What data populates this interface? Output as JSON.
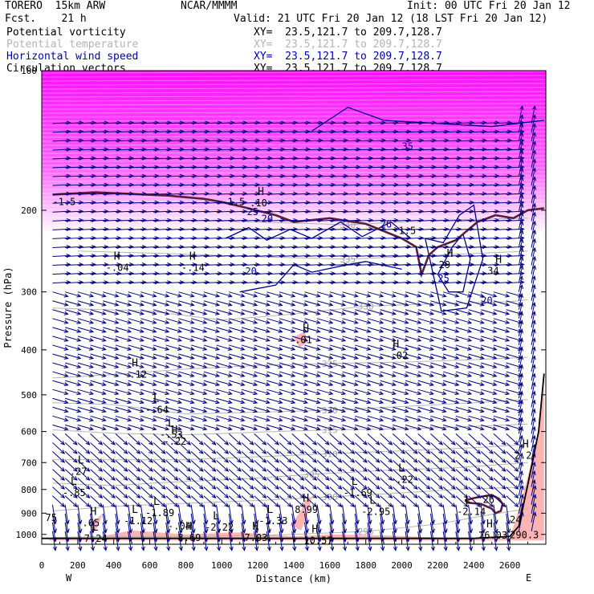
{
  "header": {
    "model": "TORERO  15km ARW",
    "org": "NCAR/MMMM",
    "init": "Init: 00 UTC Fri 20 Jan 12",
    "fcst": "Fcst.    21 h",
    "valid": "Valid: 21 UTC Fri 20 Jan 12 (18 LST Fri 20 Jan 12)"
  },
  "legend": [
    {
      "label": "Potential vorticity",
      "xy": "XY=  23.5,121.7 to 209.7,128.7",
      "color": "#000000"
    },
    {
      "label": "Potential temperature",
      "xy": "XY=  23.5,121.7 to 209.7,128.7",
      "color": "#b4b4b4"
    },
    {
      "label": "Horizontal wind speed",
      "xy": "XY=  23.5,121.7 to 209.7,128.7",
      "color": "#0000aa"
    },
    {
      "label": "Circulation vectors",
      "xy": "XY=  23.5,121.7 to 209.7,128.7",
      "color": "#000000"
    }
  ],
  "chart_data": {
    "type": "cross-section",
    "xlabel": "Distance (km)",
    "ylabel": "Pressure (hPa)",
    "xlim": [
      0,
      2800
    ],
    "ylim": [
      1050,
      100
    ],
    "y_log_scale": true,
    "x_ticks": [
      0,
      200,
      400,
      600,
      800,
      1000,
      1200,
      1400,
      1600,
      1800,
      2000,
      2200,
      2400,
      2600
    ],
    "y_ticks": [
      100,
      200,
      300,
      400,
      500,
      600,
      700,
      800,
      900,
      1000
    ],
    "x_end_labels": {
      "left": "W",
      "right": "E"
    },
    "colors": {
      "theta": "#b4b4b4",
      "wind": "#00008b",
      "pv": "#5a1e3c",
      "pv_fill": "#ff00ff",
      "shade": "#ffb4b4",
      "vector": "#000080"
    },
    "theta_contours": [
      {
        "value": 295,
        "points": [
          [
            60,
            1015
          ],
          [
            400,
            1010
          ],
          [
            800,
            1012
          ],
          [
            1400,
            1000
          ],
          [
            1800,
            985
          ],
          [
            2200,
            950
          ],
          [
            2500,
            905
          ],
          [
            2700,
            880
          ]
        ]
      },
      {
        "value": 300,
        "points": [
          [
            60,
            890
          ],
          [
            400,
            870
          ],
          [
            700,
            860
          ],
          [
            1200,
            845
          ],
          [
            1600,
            830
          ],
          [
            1900,
            818
          ],
          [
            2300,
            800
          ],
          [
            2700,
            790
          ]
        ]
      },
      {
        "value": 305,
        "points": [
          [
            60,
            775
          ],
          [
            400,
            785
          ],
          [
            700,
            772
          ],
          [
            1100,
            760
          ],
          [
            1500,
            742
          ],
          [
            1900,
            728
          ],
          [
            2300,
            718
          ],
          [
            2700,
            700
          ]
        ]
      },
      {
        "value": 310,
        "points": [
          [
            60,
            690
          ],
          [
            400,
            690
          ],
          [
            800,
            690
          ],
          [
            1200,
            680
          ],
          [
            1600,
            670
          ],
          [
            2000,
            660
          ],
          [
            2400,
            650
          ],
          [
            2700,
            640
          ]
        ]
      },
      {
        "value": 315,
        "points": [
          [
            60,
            595
          ],
          [
            400,
            605
          ],
          [
            800,
            610
          ],
          [
            1200,
            602
          ],
          [
            1600,
            595
          ],
          [
            2000,
            592
          ],
          [
            2400,
            585
          ],
          [
            2700,
            578
          ]
        ]
      },
      {
        "value": 320,
        "points": [
          [
            60,
            520
          ],
          [
            400,
            525
          ],
          [
            800,
            550
          ],
          [
            1200,
            545
          ],
          [
            1600,
            540
          ],
          [
            2000,
            530
          ],
          [
            2400,
            520
          ],
          [
            2700,
            512
          ]
        ]
      },
      {
        "value": 325,
        "points": [
          [
            60,
            460
          ],
          [
            400,
            452
          ],
          [
            800,
            440
          ],
          [
            1200,
            432
          ],
          [
            1600,
            428
          ],
          [
            2000,
            425
          ],
          [
            2400,
            420
          ],
          [
            2700,
            415
          ]
        ]
      },
      {
        "value": 330,
        "points": [
          [
            60,
            325
          ],
          [
            600,
            330
          ],
          [
            1000,
            345
          ],
          [
            1400,
            335
          ],
          [
            1800,
            322
          ],
          [
            2200,
            318
          ],
          [
            2600,
            315
          ],
          [
            2700,
            312
          ]
        ]
      },
      {
        "value": 335,
        "points": [
          [
            200,
            245
          ],
          [
            700,
            248
          ],
          [
            1200,
            252
          ],
          [
            1700,
            255
          ],
          [
            2200,
            250
          ],
          [
            2700,
            245
          ]
        ]
      },
      {
        "value": 340,
        "points": [
          [
            200,
            210
          ],
          [
            700,
            210
          ],
          [
            1200,
            212
          ],
          [
            1700,
            215
          ],
          [
            2200,
            210
          ],
          [
            2700,
            208
          ]
        ]
      }
    ],
    "wind_contours": [
      {
        "value": 25,
        "points": [
          [
            1020,
            230
          ],
          [
            1150,
            218
          ],
          [
            1250,
            232
          ],
          [
            1380,
            220
          ],
          [
            1500,
            230
          ],
          [
            1660,
            212
          ],
          [
            1780,
            228
          ],
          [
            1940,
            212
          ],
          [
            2050,
            230
          ]
        ]
      },
      {
        "value": 20,
        "points": [
          [
            1100,
            300
          ],
          [
            1300,
            290
          ],
          [
            1400,
            262
          ],
          [
            1500,
            272
          ],
          [
            1700,
            262
          ],
          [
            1800,
            258
          ],
          [
            2000,
            268
          ]
        ]
      },
      {
        "value": 25,
        "points": [
          [
            2200,
            275
          ],
          [
            2280,
            240
          ],
          [
            2340,
            225
          ],
          [
            2380,
            255
          ],
          [
            2340,
            300
          ],
          [
            2260,
            300
          ],
          [
            2200,
            275
          ]
        ]
      },
      {
        "value": 20,
        "points": [
          [
            2130,
            230
          ],
          [
            2230,
            235
          ],
          [
            2320,
            205
          ],
          [
            2400,
            195
          ],
          [
            2450,
            255
          ],
          [
            2360,
            325
          ],
          [
            2220,
            330
          ],
          [
            2130,
            230
          ]
        ]
      },
      {
        "value": 35,
        "points": [
          [
            1500,
            135
          ],
          [
            1700,
            120
          ],
          [
            1900,
            128
          ],
          [
            2200,
            130
          ],
          [
            2500,
            132
          ],
          [
            2790,
            128
          ]
        ]
      }
    ],
    "pv_contours": [
      {
        "value": 1.5,
        "points": [
          [
            60,
            185
          ],
          [
            300,
            183
          ],
          [
            700,
            186
          ],
          [
            900,
            189
          ],
          [
            1000,
            192
          ],
          [
            1100,
            196
          ],
          [
            1300,
            205
          ],
          [
            1400,
            212
          ],
          [
            1600,
            208
          ],
          [
            1800,
            214
          ],
          [
            2000,
            230
          ],
          [
            2080,
            240
          ],
          [
            2110,
            275
          ],
          [
            2150,
            250
          ],
          [
            2200,
            240
          ],
          [
            2300,
            232
          ],
          [
            2420,
            212
          ],
          [
            2520,
            205
          ],
          [
            2620,
            208
          ],
          [
            2700,
            200
          ],
          [
            2790,
            198
          ]
        ]
      },
      {
        "value": 1.5,
        "points": [
          [
            2350,
            845
          ],
          [
            2400,
            835
          ],
          [
            2450,
            828
          ],
          [
            2500,
            822
          ],
          [
            2540,
            838
          ],
          [
            2560,
            860
          ],
          [
            2550,
            890
          ],
          [
            2520,
            900
          ],
          [
            2500,
            880
          ],
          [
            2440,
            860
          ],
          [
            2380,
            855
          ],
          [
            2350,
            845
          ]
        ]
      }
    ],
    "wind_vectors": [
      {
        "layer": "upper",
        "p_range": [
          130,
          300
        ],
        "u": 1.0,
        "v": -0.05
      },
      {
        "layer": "mid",
        "p_range": [
          300,
          600
        ],
        "u": 0.85,
        "v": 0.25
      },
      {
        "layer": "lower",
        "p_range": [
          600,
          850
        ],
        "u": 0.6,
        "v": 0.55
      },
      {
        "layer": "boundary",
        "p_range": [
          850,
          1020
        ],
        "u": 0.15,
        "v": 1.0
      }
    ],
    "highs_lows": [
      {
        "kind": "H",
        "x": 400,
        "p": 262,
        "value": "-.04"
      },
      {
        "kind": "H",
        "x": 820,
        "p": 262,
        "value": "-.14"
      },
      {
        "kind": "H",
        "x": 1200,
        "p": 190,
        "value": ".10"
      },
      {
        "kind": "H",
        "x": 1450,
        "p": 375,
        "value": ".01"
      },
      {
        "kind": "H",
        "x": 1950,
        "p": 405,
        "value": "-.02"
      },
      {
        "kind": "H",
        "x": 2250,
        "p": 258,
        "value": "29"
      },
      {
        "kind": "H",
        "x": 2520,
        "p": 266,
        "value": "34"
      },
      {
        "kind": "H",
        "x": 500,
        "p": 445,
        "value": "-.12"
      },
      {
        "kind": "L",
        "x": 620,
        "p": 530,
        "value": "-.64"
      },
      {
        "kind": "L",
        "x": 700,
        "p": 600,
        "value": "-.53"
      },
      {
        "kind": "H",
        "x": 720,
        "p": 620,
        "value": "-.22"
      },
      {
        "kind": "L",
        "x": 200,
        "p": 720,
        "value": ".27"
      },
      {
        "kind": "L",
        "x": 160,
        "p": 800,
        "value": "-.85"
      },
      {
        "kind": "H",
        "x": 2670,
        "p": 665,
        "value": "2.2"
      },
      {
        "kind": "L",
        "x": 1980,
        "p": 750,
        "value": "-.22"
      },
      {
        "kind": "L",
        "x": 1720,
        "p": 800,
        "value": "-1.69"
      },
      {
        "kind": "L",
        "x": 620,
        "p": 885,
        "value": "-1.89"
      },
      {
        "kind": "H",
        "x": 1450,
        "p": 870,
        "value": "8.99"
      },
      {
        "kind": "L",
        "x": 1820,
        "p": 880,
        "value": "-2.95"
      },
      {
        "kind": "L",
        "x": 2350,
        "p": 880,
        "value": "-2.14"
      },
      {
        "kind": "L",
        "x": 1250,
        "p": 920,
        "value": "-1.33"
      },
      {
        "kind": "L",
        "x": 950,
        "p": 950,
        "value": "-2.22"
      },
      {
        "kind": "L",
        "x": 500,
        "p": 920,
        "value": "-1.12"
      },
      {
        "kind": "H",
        "x": 270,
        "p": 930,
        "value": ".65"
      },
      {
        "kind": "H",
        "x": 800,
        "p": 1000,
        "value": "8.69"
      },
      {
        "kind": "L",
        "x": 280,
        "p": 1005,
        "value": "7.24"
      },
      {
        "kind": "H",
        "x": 1170,
        "p": 1000,
        "value": "7.03"
      },
      {
        "kind": "H",
        "x": 1500,
        "p": 1015,
        "value": "10.57"
      },
      {
        "kind": "H",
        "x": 2470,
        "p": 990,
        "value": "26.03"
      }
    ],
    "extra_labels": [
      {
        "text": "-1.5",
        "x": 60,
        "p": 195,
        "color": "#000000"
      },
      {
        "text": "-1.5",
        "x": 1000,
        "p": 195,
        "color": "#000000"
      },
      {
        "text": "-1.5",
        "x": 1950,
        "p": 225,
        "color": "#000000"
      },
      {
        "text": "25",
        "x": 1140,
        "p": 205,
        "color": "#00008b"
      },
      {
        "text": "20",
        "x": 1130,
        "p": 275,
        "color": "#00008b"
      },
      {
        "text": "20",
        "x": 1220,
        "p": 212,
        "color": "#00008b"
      },
      {
        "text": "26",
        "x": 1880,
        "p": 218,
        "color": "#00008b"
      },
      {
        "text": "35",
        "x": 2000,
        "p": 148,
        "color": "#00008b"
      },
      {
        "text": "25",
        "x": 2200,
        "p": 285,
        "color": "#00008b"
      },
      {
        "text": "20",
        "x": 2440,
        "p": 318,
        "color": "#00008b"
      },
      {
        "text": "75",
        "x": 20,
        "p": 935,
        "color": "#000000"
      },
      {
        "text": "-.04",
        "x": 700,
        "p": 975,
        "color": "#000000"
      },
      {
        "text": "26",
        "x": 2450,
        "p": 855,
        "color": "#000000"
      },
      {
        "text": "24",
        "x": 2600,
        "p": 945,
        "color": "#000000"
      },
      {
        "text": "290.3",
        "x": 2600,
        "p": 1020,
        "color": "#000000"
      }
    ],
    "pv_fill_top_p": [
      120,
      225
    ],
    "shaded_regions": [
      {
        "points": [
          [
            40,
            1020
          ],
          [
            300,
            1015
          ],
          [
            500,
            980
          ],
          [
            800,
            1000
          ],
          [
            1100,
            990
          ],
          [
            1400,
            1010
          ],
          [
            1600,
            1000
          ],
          [
            1900,
            1005
          ],
          [
            2200,
            1015
          ],
          [
            2600,
            1020
          ],
          [
            2600,
            1030
          ],
          [
            40,
            1030
          ]
        ]
      },
      {
        "points": [
          [
            2600,
            1020
          ],
          [
            2650,
            880
          ],
          [
            2700,
            750
          ],
          [
            2760,
            600
          ],
          [
            2790,
            480
          ],
          [
            2790,
            1030
          ],
          [
            2600,
            1030
          ]
        ]
      },
      {
        "points": [
          [
            1380,
            955
          ],
          [
            1440,
            890
          ],
          [
            1460,
            845
          ],
          [
            1500,
            830
          ],
          [
            1480,
            900
          ],
          [
            1440,
            980
          ]
        ]
      },
      {
        "points": [
          [
            260,
            1000
          ],
          [
            300,
            930
          ],
          [
            340,
            900
          ],
          [
            300,
            980
          ]
        ]
      },
      {
        "points": [
          [
            1400,
            375
          ],
          [
            1460,
            365
          ],
          [
            1480,
            385
          ],
          [
            1430,
            395
          ]
        ]
      }
    ],
    "terrain": [
      [
        0,
        1020
      ],
      [
        2400,
        1020
      ],
      [
        2600,
        1010
      ],
      [
        2650,
        960
      ],
      [
        2700,
        780
      ],
      [
        2760,
        600
      ],
      [
        2790,
        450
      ]
    ]
  }
}
